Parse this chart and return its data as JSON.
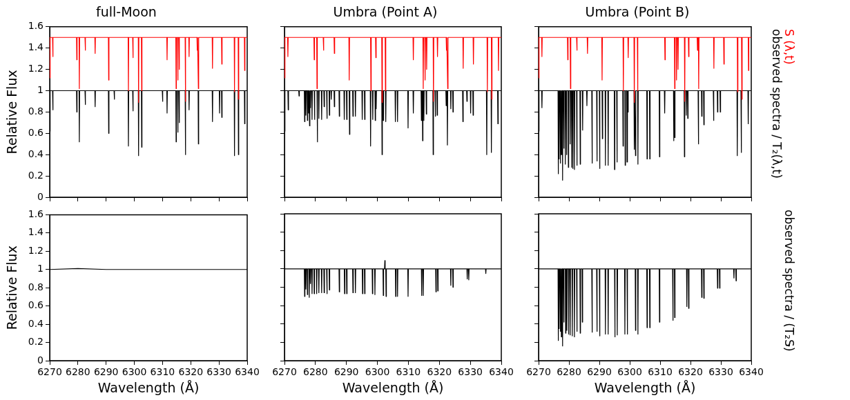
{
  "chart_data": [
    {
      "type": "line",
      "title": "full-Moon",
      "ylabel": "Relative Flux",
      "xlim": [
        6270,
        6340
      ],
      "xticks": [
        6270,
        6280,
        6290,
        6300,
        6310,
        6320,
        6330,
        6340
      ],
      "ylim": [
        0,
        1.6
      ],
      "yticks": [
        0,
        0.2,
        0.4,
        0.6,
        0.8,
        1,
        1.2,
        1.4,
        1.6
      ],
      "tick_labels": "y",
      "series": [
        {
          "color": "#ff0000",
          "x": [
            6270,
            6270.1,
            6270.2,
            6271,
            6271.1,
            6271.2,
            6279.5,
            6279.6,
            6279.7,
            6280.4,
            6280.5,
            6280.6,
            6282.5,
            6282.6,
            6282.7,
            6286,
            6286.1,
            6286.2,
            6290.8,
            6290.9,
            6291,
            6297.8,
            6297.9,
            6298,
            6299.4,
            6299.5,
            6299.6,
            6301.4,
            6301.5,
            6301.6,
            6302.5,
            6302.6,
            6302.7,
            6311.5,
            6311.6,
            6311.7,
            6314.7,
            6314.8,
            6314.9,
            6315.3,
            6315.4,
            6315.5,
            6315.8,
            6315.9,
            6316,
            6318,
            6318.1,
            6318.2,
            6319.3,
            6319.4,
            6319.5,
            6322.2,
            6322.3,
            6322.4,
            6322.6,
            6322.7,
            6322.8,
            6327.6,
            6327.7,
            6327.8,
            6330.9,
            6331,
            6331.1,
            6335.4,
            6335.5,
            6335.6,
            6336.8,
            6336.9,
            6337,
            6339,
            6339.1,
            6339.2,
            6340
          ],
          "values": [
            1.5,
            1.12,
            1.5,
            1.5,
            1.32,
            1.5,
            1.5,
            1.29,
            1.5,
            1.5,
            1.02,
            1.5,
            1.5,
            1.38,
            1.5,
            1.5,
            1.35,
            1.5,
            1.5,
            1.1,
            1.5,
            1.5,
            1.0,
            1.5,
            1.5,
            1.31,
            1.5,
            1.5,
            0.89,
            1.5,
            1.5,
            1.0,
            1.5,
            1.5,
            1.29,
            1.5,
            1.5,
            1.02,
            1.5,
            1.5,
            1.1,
            1.5,
            1.5,
            1.2,
            1.5,
            1.5,
            0.9,
            1.5,
            1.5,
            1.32,
            1.5,
            1.5,
            1.38,
            1.5,
            1.5,
            1.02,
            1.5,
            1.5,
            1.21,
            1.5,
            1.5,
            1.25,
            1.5,
            1.5,
            0.99,
            1.5,
            1.5,
            0.92,
            1.5,
            1.5,
            1.19,
            1.5,
            1.5
          ]
        },
        {
          "color": "#000000",
          "x": [
            6270,
            6270.1,
            6270.2,
            6271,
            6271.1,
            6271.2,
            6279.5,
            6279.6,
            6279.7,
            6280.4,
            6280.5,
            6280.6,
            6282.5,
            6282.6,
            6282.7,
            6286,
            6286.1,
            6286.2,
            6290.8,
            6290.9,
            6291,
            6292.8,
            6292.9,
            6293,
            6297.8,
            6297.9,
            6298,
            6299.4,
            6299.5,
            6299.6,
            6301.4,
            6301.5,
            6301.6,
            6302.5,
            6302.6,
            6302.7,
            6309.9,
            6310,
            6310.1,
            6311.5,
            6311.6,
            6311.7,
            6314.7,
            6314.8,
            6314.9,
            6315.3,
            6315.4,
            6315.5,
            6315.8,
            6315.9,
            6316,
            6318,
            6318.1,
            6318.2,
            6319.3,
            6319.4,
            6319.5,
            6322.6,
            6322.7,
            6322.8,
            6327.6,
            6327.7,
            6327.8,
            6330.1,
            6330.2,
            6330.3,
            6330.9,
            6331,
            6331.1,
            6335.4,
            6335.5,
            6335.6,
            6336.8,
            6336.9,
            6337,
            6339,
            6339.1,
            6339.2,
            6340
          ],
          "values": [
            1,
            0.62,
            1,
            1,
            0.82,
            1,
            1,
            0.8,
            1,
            1,
            0.52,
            1,
            1,
            0.87,
            1,
            1,
            0.85,
            1,
            1,
            0.6,
            1,
            1,
            0.92,
            1,
            1,
            0.48,
            1,
            1,
            0.81,
            1,
            1,
            0.39,
            1,
            1,
            0.47,
            1,
            1,
            0.9,
            1,
            1,
            0.79,
            1,
            1,
            0.52,
            1,
            1,
            0.61,
            1,
            1,
            0.7,
            1,
            1,
            0.4,
            1,
            1,
            0.82,
            1,
            1,
            0.5,
            1,
            1,
            0.71,
            1,
            1,
            0.79,
            1,
            1,
            0.75,
            1,
            1,
            0.39,
            1,
            1,
            0.4,
            1,
            1,
            0.69,
            1,
            1
          ]
        }
      ]
    },
    {
      "type": "line",
      "title": "Umbra (Point A)",
      "xlim": [
        6270,
        6340
      ],
      "xticks": [
        6270,
        6280,
        6290,
        6300,
        6310,
        6320,
        6330,
        6340
      ],
      "ylim": [
        0,
        1.6
      ],
      "yticks": [
        0,
        0.2,
        0.4,
        0.6,
        0.8,
        1,
        1.2,
        1.4,
        1.6
      ],
      "tick_labels": false,
      "series": [
        {
          "color": "#ff0000",
          "x": [
            6270,
            6270.1,
            6270.2,
            6271,
            6271.1,
            6271.2,
            6279.5,
            6279.6,
            6279.7,
            6280.4,
            6280.5,
            6280.6,
            6282.5,
            6282.6,
            6282.7,
            6286,
            6286.1,
            6286.2,
            6290.8,
            6290.9,
            6291,
            6297.8,
            6297.9,
            6298,
            6299.4,
            6299.5,
            6299.6,
            6301.4,
            6301.5,
            6301.6,
            6302.5,
            6302.6,
            6302.7,
            6311.5,
            6311.6,
            6311.7,
            6314.7,
            6314.8,
            6314.9,
            6315.3,
            6315.4,
            6315.5,
            6315.8,
            6315.9,
            6316,
            6318,
            6318.1,
            6318.2,
            6319.3,
            6319.4,
            6319.5,
            6322.2,
            6322.3,
            6322.4,
            6322.6,
            6322.7,
            6322.8,
            6327.6,
            6327.7,
            6327.8,
            6330.9,
            6331,
            6331.1,
            6335.4,
            6335.5,
            6335.6,
            6336.8,
            6336.9,
            6337,
            6339,
            6339.1,
            6339.2,
            6340
          ],
          "values": [
            1.5,
            1.12,
            1.5,
            1.5,
            1.32,
            1.5,
            1.5,
            1.29,
            1.5,
            1.5,
            1.02,
            1.5,
            1.5,
            1.38,
            1.5,
            1.5,
            1.35,
            1.5,
            1.5,
            1.1,
            1.5,
            1.5,
            1.0,
            1.5,
            1.5,
            1.31,
            1.5,
            1.5,
            0.89,
            1.5,
            1.5,
            1.0,
            1.5,
            1.5,
            1.29,
            1.5,
            1.5,
            1.02,
            1.5,
            1.5,
            1.1,
            1.5,
            1.5,
            1.2,
            1.5,
            1.5,
            0.9,
            1.5,
            1.5,
            1.32,
            1.5,
            1.5,
            1.38,
            1.5,
            1.5,
            1.02,
            1.5,
            1.5,
            1.21,
            1.5,
            1.5,
            1.25,
            1.5,
            1.5,
            0.99,
            1.5,
            1.5,
            0.92,
            1.5,
            1.5,
            1.19,
            1.5,
            1.5
          ]
        },
        {
          "color": "#000000",
          "x": [
            6270,
            6270.1,
            6270.2,
            6271.1,
            6271.2,
            6271.3,
            6274.6,
            6274.7,
            6274.8,
            6276.4,
            6276.5,
            6276.6,
            6276.8,
            6276.9,
            6277,
            6277.3,
            6277.4,
            6277.5,
            6277.7,
            6277.8,
            6277.9,
            6278,
            6278.1,
            6278.2,
            6278.3,
            6278.4,
            6278.5,
            6278.8,
            6278.9,
            6279,
            6279.6,
            6279.7,
            6279.8,
            6280.5,
            6280.6,
            6280.7,
            6281,
            6281.1,
            6281.2,
            6281.9,
            6282,
            6282.1,
            6282.7,
            6282.8,
            6282.9,
            6283.6,
            6283.7,
            6283.8,
            6284.4,
            6284.5,
            6284.6,
            6285,
            6285.1,
            6285.2,
            6286,
            6286.1,
            6286.2,
            6287.6,
            6287.7,
            6287.8,
            6289.2,
            6289.3,
            6289.4,
            6290,
            6290.1,
            6290.2,
            6290.9,
            6291,
            6291.1,
            6292,
            6292.1,
            6292.2,
            6292.8,
            6292.9,
            6293,
            6295,
            6295.1,
            6295.2,
            6295.8,
            6295.9,
            6296,
            6297.7,
            6297.8,
            6297.9,
            6298.4,
            6298.5,
            6298.6,
            6299.2,
            6299.3,
            6299.4,
            6299.5,
            6299.6,
            6299.7,
            6301.4,
            6301.5,
            6301.6,
            6301.8,
            6301.9,
            6302,
            6302.6,
            6302.7,
            6302.8,
            6305.7,
            6305.8,
            6305.9,
            6306.4,
            6306.5,
            6306.6,
            6309.8,
            6309.9,
            6310,
            6311.5,
            6311.6,
            6311.7,
            6314.1,
            6314.2,
            6314.3,
            6314.5,
            6314.6,
            6314.7,
            6314.9,
            6315,
            6315.1,
            6315.7,
            6315.8,
            6315.9,
            6317.9,
            6318,
            6318.1,
            6318.6,
            6318.7,
            6318.8,
            6319.2,
            6319.3,
            6319.4,
            6322.1,
            6322.2,
            6322.3,
            6322.5,
            6322.6,
            6322.7,
            6323.6,
            6323.7,
            6323.8,
            6324.3,
            6324.4,
            6324.5,
            6327.5,
            6327.6,
            6327.7,
            6328.8,
            6328.9,
            6329,
            6330,
            6330.1,
            6330.2,
            6330.8,
            6330.9,
            6331,
            6335.2,
            6335.3,
            6335.4,
            6336.7,
            6336.8,
            6336.9,
            6338.8,
            6338.9,
            6339,
            6340
          ],
          "values": [
            1,
            0.62,
            1,
            1,
            0.82,
            1,
            1,
            0.95,
            1,
            1,
            0.71,
            1,
            1,
            0.77,
            1,
            1,
            0.72,
            1,
            1,
            0.79,
            1,
            1,
            0.67,
            1,
            1,
            0.84,
            1,
            1,
            0.73,
            1,
            1,
            0.73,
            1,
            1,
            0.52,
            1,
            1,
            0.74,
            1,
            1,
            0.73,
            1,
            1,
            0.85,
            1,
            1,
            0.74,
            1,
            1,
            0.77,
            1,
            1,
            0.92,
            1,
            1,
            0.85,
            1,
            1,
            0.76,
            1,
            1,
            0.73,
            1,
            1,
            0.73,
            1,
            1,
            0.59,
            1,
            1,
            0.76,
            1,
            1,
            0.76,
            1,
            1,
            0.73,
            1,
            1,
            0.73,
            1,
            1,
            0.48,
            1,
            1,
            0.73,
            1,
            1,
            0.72,
            1,
            1,
            0.83,
            1,
            1,
            0.4,
            1,
            1,
            0.72,
            1,
            1,
            0.71,
            1,
            1,
            0.71,
            1,
            1,
            0.71,
            1,
            1,
            0.65,
            1,
            1,
            0.79,
            1,
            1,
            0.72,
            1,
            1,
            0.53,
            1,
            1,
            0.72,
            1,
            1,
            0.78,
            1,
            1,
            0.4,
            1,
            1,
            0.76,
            1,
            1,
            0.77,
            1,
            1,
            0.86,
            1,
            1,
            0.49,
            1,
            1,
            0.83,
            1,
            1,
            0.8,
            1,
            1,
            0.71,
            1,
            1,
            0.9,
            1,
            1,
            0.79,
            1,
            1,
            0.77,
            1,
            1,
            0.4,
            1,
            1,
            0.42,
            1,
            1,
            0.69,
            1,
            1
          ]
        }
      ]
    },
    {
      "type": "line",
      "title": "Umbra (Point B)",
      "xlim": [
        6270,
        6340
      ],
      "xticks": [
        6270,
        6280,
        6290,
        6300,
        6310,
        6320,
        6330,
        6340
      ],
      "ylim": [
        0,
        1.6
      ],
      "yticks": [
        0,
        0.2,
        0.4,
        0.6,
        0.8,
        1,
        1.2,
        1.4,
        1.6
      ],
      "tick_labels": false,
      "series": [
        {
          "name": "S (λ,t)",
          "color": "#ff0000",
          "x": [
            6270,
            6270.1,
            6270.2,
            6271,
            6271.1,
            6271.2,
            6279.5,
            6279.6,
            6279.7,
            6280.4,
            6280.5,
            6280.6,
            6282.5,
            6282.6,
            6282.7,
            6286,
            6286.1,
            6286.2,
            6290.8,
            6290.9,
            6291,
            6297.8,
            6297.9,
            6298,
            6299.4,
            6299.5,
            6299.6,
            6301.4,
            6301.5,
            6301.6,
            6302.5,
            6302.6,
            6302.7,
            6311.5,
            6311.6,
            6311.7,
            6314.7,
            6314.8,
            6314.9,
            6315.3,
            6315.4,
            6315.5,
            6315.8,
            6315.9,
            6316,
            6318,
            6318.1,
            6318.2,
            6319.3,
            6319.4,
            6319.5,
            6322.2,
            6322.3,
            6322.4,
            6322.6,
            6322.7,
            6322.8,
            6327.6,
            6327.7,
            6327.8,
            6330.9,
            6331,
            6331.1,
            6335.4,
            6335.5,
            6335.6,
            6336.8,
            6336.9,
            6337,
            6339,
            6339.1,
            6339.2,
            6340
          ],
          "values": [
            1.5,
            1.12,
            1.5,
            1.5,
            1.32,
            1.5,
            1.5,
            1.29,
            1.5,
            1.5,
            1.02,
            1.5,
            1.5,
            1.38,
            1.5,
            1.5,
            1.35,
            1.5,
            1.5,
            1.1,
            1.5,
            1.5,
            1.0,
            1.5,
            1.5,
            1.31,
            1.5,
            1.5,
            0.89,
            1.5,
            1.5,
            1.0,
            1.5,
            1.5,
            1.29,
            1.5,
            1.5,
            1.02,
            1.5,
            1.5,
            1.1,
            1.5,
            1.5,
            1.2,
            1.5,
            1.5,
            0.9,
            1.5,
            1.5,
            1.32,
            1.5,
            1.5,
            1.38,
            1.5,
            1.5,
            1.02,
            1.5,
            1.5,
            1.21,
            1.5,
            1.5,
            1.25,
            1.5,
            1.5,
            0.99,
            1.5,
            1.5,
            0.92,
            1.5,
            1.5,
            1.19,
            1.5,
            1.5
          ]
        },
        {
          "name": "observed spectra / T₂(λ,t)",
          "color": "#000000",
          "x": [
            6270,
            6270.1,
            6270.2,
            6271,
            6271.1,
            6271.2,
            6276.4,
            6276.5,
            6276.6,
            6276.7,
            6276.8,
            6276.9,
            6277.1,
            6277.2,
            6277.3,
            6277.4,
            6277.5,
            6277.6,
            6277.8,
            6277.9,
            6278,
            6278.2,
            6278.3,
            6278.4,
            6278.7,
            6278.8,
            6278.9,
            6279.1,
            6279.2,
            6279.3,
            6279.7,
            6279.8,
            6279.9,
            6280.3,
            6280.4,
            6280.5,
            6280.8,
            6280.9,
            6281,
            6281.2,
            6281.3,
            6281.4,
            6281.7,
            6281.8,
            6281.9,
            6282.5,
            6282.6,
            6282.7,
            6283.6,
            6283.7,
            6283.8,
            6284.4,
            6284.5,
            6284.6,
            6285.8,
            6285.9,
            6286,
            6287.5,
            6287.6,
            6287.7,
            6289.1,
            6289.2,
            6289.3,
            6290,
            6290.1,
            6290.2,
            6290.9,
            6291,
            6291.1,
            6291.9,
            6292,
            6292.1,
            6292.8,
            6292.9,
            6293,
            6294.9,
            6295,
            6295.1,
            6295.7,
            6295.8,
            6295.9,
            6297.7,
            6297.8,
            6297.9,
            6298.4,
            6298.5,
            6298.6,
            6299,
            6299.1,
            6299.2,
            6299.3,
            6299.4,
            6299.5,
            6301.4,
            6301.5,
            6301.6,
            6301.8,
            6301.9,
            6302,
            6302.6,
            6302.7,
            6302.8,
            6305.6,
            6305.7,
            6305.8,
            6306.5,
            6306.6,
            6306.7,
            6309.7,
            6309.8,
            6309.9,
            6311.4,
            6311.5,
            6311.6,
            6314.4,
            6314.5,
            6314.6,
            6314.7,
            6314.8,
            6314.9,
            6317.9,
            6318,
            6318.1,
            6318.5,
            6318.6,
            6318.7,
            6319,
            6319.1,
            6319.2,
            6322.5,
            6322.6,
            6322.7,
            6323.6,
            6323.7,
            6323.8,
            6324.3,
            6324.4,
            6324.5,
            6327.5,
            6327.6,
            6327.7,
            6328.8,
            6328.9,
            6329,
            6329.7,
            6329.8,
            6329.9,
            6335.3,
            6335.4,
            6335.5,
            6336.6,
            6336.7,
            6336.8,
            6338.9,
            6339,
            6339.1,
            6340
          ],
          "values": [
            1,
            0.62,
            1,
            1,
            0.84,
            1,
            1,
            0.22,
            1,
            1,
            0.36,
            1,
            1,
            0.32,
            1,
            1,
            0.4,
            1,
            1,
            0.16,
            1,
            1,
            0.46,
            1,
            1,
            0.31,
            1,
            1,
            0.4,
            1,
            1,
            0.28,
            1,
            1,
            0.5,
            1,
            1,
            0.28,
            1,
            1,
            0.27,
            1,
            1,
            0.26,
            1,
            1,
            0.3,
            1,
            1,
            0.31,
            1,
            1,
            0.63,
            1,
            1,
            0.86,
            1,
            1,
            0.32,
            1,
            1,
            0.34,
            1,
            1,
            0.27,
            1,
            1,
            0.55,
            1,
            1,
            0.3,
            1,
            1,
            0.3,
            1,
            1,
            0.26,
            1,
            1,
            0.33,
            1,
            1,
            0.48,
            1,
            1,
            0.3,
            1,
            1,
            0.33,
            1,
            1,
            0.8,
            1,
            1,
            0.45,
            1,
            1,
            0.39,
            1,
            1,
            0.31,
            1,
            1,
            0.36,
            1,
            1,
            0.36,
            1,
            1,
            0.38,
            1,
            1,
            0.79,
            1,
            1,
            0.53,
            1,
            1,
            0.56,
            1,
            1,
            0.38,
            1,
            1,
            0.77,
            1,
            1,
            0.74,
            1,
            1,
            0.5,
            1,
            1,
            0.76,
            1,
            1,
            0.68,
            1,
            1,
            0.72,
            1,
            1,
            0.8,
            1,
            1,
            0.8,
            1,
            1,
            0.39,
            1,
            1,
            0.42,
            1,
            1,
            0.69,
            1,
            1
          ]
        }
      ]
    },
    {
      "type": "line",
      "ylabel": "Relative Flux",
      "xlabel": "Wavelength (Å)",
      "xlim": [
        6270,
        6340
      ],
      "xticks": [
        6270,
        6280,
        6290,
        6300,
        6310,
        6320,
        6330,
        6340
      ],
      "ylim": [
        0,
        1.6
      ],
      "yticks": [
        0,
        0.2,
        0.4,
        0.6,
        0.8,
        1,
        1.2,
        1.4,
        1.6
      ],
      "series": [
        {
          "color": "#000000",
          "x": [
            6270,
            6280,
            6290,
            6300,
            6310,
            6318,
            6330,
            6340
          ],
          "values": [
            1,
            1.01,
            1,
            1,
            1,
            1,
            1,
            1
          ]
        }
      ]
    },
    {
      "type": "line",
      "xlabel": "Wavelength (Å)",
      "xlim": [
        6270,
        6340
      ],
      "xticks": [
        6270,
        6280,
        6290,
        6300,
        6310,
        6320,
        6330,
        6340
      ],
      "ylim": [
        0,
        1.6
      ],
      "yticks": [
        0,
        0.2,
        0.4,
        0.6,
        0.8,
        1,
        1.2,
        1.4,
        1.6
      ],
      "tick_labels": "x",
      "series": [
        {
          "color": "#000000",
          "x": [
            6270,
            6276.4,
            6276.5,
            6276.6,
            6276.8,
            6276.9,
            6277,
            6277.3,
            6277.4,
            6277.5,
            6277.9,
            6278,
            6278.1,
            6278.3,
            6278.4,
            6278.5,
            6278.8,
            6278.9,
            6279,
            6279.5,
            6279.6,
            6279.7,
            6280.3,
            6280.4,
            6280.5,
            6281,
            6281.1,
            6281.2,
            6281.9,
            6282,
            6282.1,
            6282.7,
            6282.8,
            6282.9,
            6283.6,
            6283.7,
            6283.8,
            6284.4,
            6284.5,
            6284.6,
            6287.6,
            6287.7,
            6287.8,
            6289.3,
            6289.4,
            6289.5,
            6290,
            6290.1,
            6290.2,
            6292,
            6292.1,
            6292.2,
            6292.8,
            6292.9,
            6293,
            6295.1,
            6295.2,
            6295.3,
            6295.8,
            6295.9,
            6296,
            6298.3,
            6298.4,
            6298.5,
            6299.1,
            6299.2,
            6299.3,
            6301.8,
            6301.9,
            6302,
            6302.3,
            6302.4,
            6302.5,
            6302.7,
            6302.8,
            6302.9,
            6305.8,
            6305.9,
            6306,
            6306.4,
            6306.5,
            6306.6,
            6309.8,
            6309.9,
            6310,
            6314.2,
            6314.3,
            6314.4,
            6314.7,
            6314.8,
            6314.9,
            6318.8,
            6318.9,
            6319,
            6319.4,
            6319.5,
            6319.6,
            6323.6,
            6323.7,
            6323.8,
            6324.3,
            6324.4,
            6324.5,
            6328.9,
            6329,
            6329.1,
            6329.4,
            6329.5,
            6329.6,
            6334.9,
            6335,
            6335.1,
            6340
          ],
          "values": [
            1,
            1,
            0.7,
            1,
            1,
            0.78,
            1,
            1,
            0.72,
            1,
            1,
            0.69,
            1,
            1,
            0.84,
            1,
            1,
            0.73,
            1,
            1,
            0.73,
            1,
            1,
            0.73,
            1,
            1,
            0.74,
            1,
            1,
            0.74,
            1,
            1,
            0.74,
            1,
            1,
            0.73,
            1,
            1,
            0.77,
            1,
            1,
            0.75,
            1,
            1,
            0.73,
            1,
            1,
            0.73,
            1,
            1,
            0.74,
            1,
            1,
            0.74,
            1,
            1,
            0.73,
            1,
            1,
            0.73,
            1,
            1,
            0.73,
            1,
            1,
            0.72,
            1,
            1,
            0.71,
            1,
            1,
            1.09,
            1,
            1,
            0.7,
            1,
            1,
            0.7,
            1,
            1,
            0.7,
            1,
            1,
            0.7,
            1,
            1,
            0.71,
            1,
            1,
            0.71,
            1,
            1,
            0.75,
            1,
            1,
            0.76,
            1,
            1,
            0.82,
            1,
            1,
            0.8,
            1,
            1,
            0.89,
            1,
            1,
            0.88,
            1,
            1,
            0.95,
            1,
            1
          ]
        }
      ]
    },
    {
      "type": "line",
      "xlabel": "Wavelength (Å)",
      "y2label": "observed spectra / (T₂・S)",
      "xlim": [
        6270,
        6340
      ],
      "xticks": [
        6270,
        6280,
        6290,
        6300,
        6310,
        6320,
        6330,
        6340
      ],
      "ylim": [
        0,
        1.6
      ],
      "yticks": [
        0,
        0.2,
        0.4,
        0.6,
        0.8,
        1,
        1.2,
        1.4,
        1.6
      ],
      "tick_labels": "x",
      "series": [
        {
          "color": "#000000",
          "x": [
            6270,
            6276.4,
            6276.5,
            6276.6,
            6276.7,
            6276.8,
            6276.9,
            6277.1,
            6277.2,
            6277.3,
            6277.4,
            6277.5,
            6277.6,
            6277.8,
            6277.9,
            6278,
            6278.2,
            6278.3,
            6278.4,
            6278.8,
            6278.9,
            6279,
            6279.2,
            6279.3,
            6279.4,
            6279.8,
            6279.9,
            6280,
            6280.3,
            6280.4,
            6280.5,
            6281,
            6281.1,
            6281.2,
            6281.7,
            6281.8,
            6281.9,
            6282.5,
            6282.6,
            6282.7,
            6283.6,
            6283.7,
            6283.8,
            6284.3,
            6284.4,
            6284.5,
            6287.5,
            6287.6,
            6287.7,
            6289.1,
            6289.2,
            6289.3,
            6290,
            6290.1,
            6290.2,
            6291.9,
            6292,
            6292.1,
            6292.8,
            6292.9,
            6293,
            6295,
            6295.1,
            6295.2,
            6295.8,
            6295.9,
            6296,
            6298.3,
            6298.4,
            6298.5,
            6299.1,
            6299.2,
            6299.3,
            6301.8,
            6301.9,
            6302,
            6302.6,
            6302.7,
            6302.8,
            6305.6,
            6305.7,
            6305.8,
            6306.5,
            6306.6,
            6306.7,
            6309.7,
            6309.8,
            6309.9,
            6314.1,
            6314.2,
            6314.3,
            6314.7,
            6314.8,
            6314.9,
            6318.7,
            6318.8,
            6318.9,
            6319.3,
            6319.4,
            6319.5,
            6323.6,
            6323.7,
            6323.8,
            6324.3,
            6324.4,
            6324.5,
            6328.8,
            6328.9,
            6329,
            6329.5,
            6329.6,
            6329.7,
            6334.2,
            6334.3,
            6334.4,
            6334.9,
            6335,
            6335.1,
            6340
          ],
          "values": [
            1,
            1,
            0.22,
            1,
            1,
            0.35,
            1,
            1,
            0.32,
            1,
            1,
            0.26,
            1,
            1,
            0.16,
            1,
            1,
            0.42,
            1,
            1,
            0.3,
            1,
            1,
            0.33,
            1,
            1,
            0.29,
            1,
            1,
            0.28,
            1,
            1,
            0.27,
            1,
            1,
            0.26,
            1,
            1,
            0.32,
            1,
            1,
            0.3,
            1,
            1,
            0.42,
            1,
            1,
            0.31,
            1,
            1,
            0.32,
            1,
            1,
            0.27,
            1,
            1,
            0.29,
            1,
            1,
            0.29,
            1,
            1,
            0.26,
            1,
            1,
            0.28,
            1,
            1,
            0.29,
            1,
            1,
            0.29,
            1,
            1,
            0.33,
            1,
            1,
            0.29,
            1,
            1,
            0.36,
            1,
            1,
            0.36,
            1,
            1,
            0.42,
            1,
            1,
            0.44,
            1,
            1,
            0.47,
            1,
            1,
            0.59,
            1,
            1,
            0.57,
            1,
            1,
            0.69,
            1,
            1,
            0.68,
            1,
            1,
            0.79,
            1,
            1,
            0.79,
            1,
            1,
            0.9,
            1,
            1,
            0.87,
            1,
            1
          ]
        }
      ]
    }
  ]
}
